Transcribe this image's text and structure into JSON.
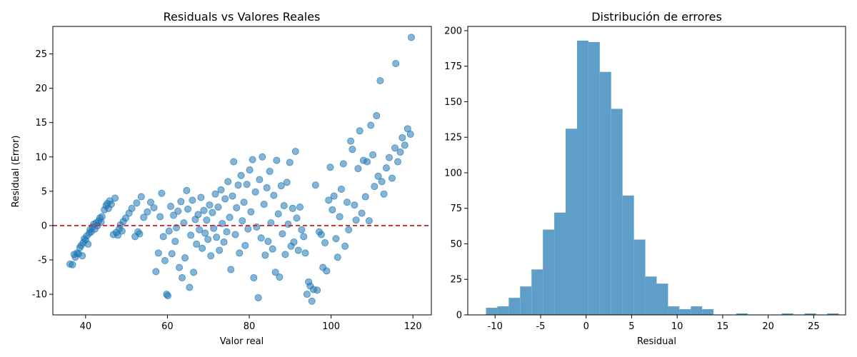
{
  "chart_data": [
    {
      "type": "scatter",
      "title": "Residuals vs Valores Reales",
      "xlabel": "Valor real",
      "ylabel": "Residual (Error)",
      "xlim": [
        32,
        124.5
      ],
      "ylim": [
        -13,
        29
      ],
      "xticks": [
        40,
        60,
        80,
        100,
        120
      ],
      "yticks": [
        -10,
        -5,
        0,
        5,
        10,
        15,
        20,
        25
      ],
      "reference_line": {
        "y": 0,
        "style": "dashed",
        "color": "#d62728"
      },
      "point_color": "#1f77b4",
      "points": [
        [
          36.2,
          -5.6
        ],
        [
          36.8,
          -5.7
        ],
        [
          37.2,
          -4.2
        ],
        [
          37.5,
          -4.6
        ],
        [
          37.9,
          -4.0
        ],
        [
          38.3,
          -4.1
        ],
        [
          38.6,
          -3.2
        ],
        [
          38.9,
          -2.9
        ],
        [
          39.2,
          -4.4
        ],
        [
          39.4,
          -2.5
        ],
        [
          39.7,
          -1.9
        ],
        [
          40.0,
          -2.1
        ],
        [
          40.3,
          -1.5
        ],
        [
          40.6,
          -2.7
        ],
        [
          40.9,
          -1.1
        ],
        [
          41.1,
          -0.6
        ],
        [
          41.4,
          -0.9
        ],
        [
          41.7,
          -0.2
        ],
        [
          42.0,
          0.2
        ],
        [
          42.3,
          -0.5
        ],
        [
          42.6,
          0.4
        ],
        [
          42.9,
          0.0
        ],
        [
          43.2,
          0.7
        ],
        [
          43.5,
          1.1
        ],
        [
          43.8,
          0.5
        ],
        [
          44.0,
          1.3
        ],
        [
          44.6,
          2.3
        ],
        [
          45.0,
          2.9
        ],
        [
          45.3,
          3.2
        ],
        [
          45.6,
          2.5
        ],
        [
          45.9,
          3.6
        ],
        [
          46.3,
          3.1
        ],
        [
          46.8,
          -1.3
        ],
        [
          47.2,
          4.0
        ],
        [
          47.5,
          -1.0
        ],
        [
          47.9,
          -1.4
        ],
        [
          48.2,
          -0.5
        ],
        [
          48.5,
          0.1
        ],
        [
          48.9,
          -0.8
        ],
        [
          49.2,
          0.6
        ],
        [
          49.8,
          1.1
        ],
        [
          50.6,
          1.8
        ],
        [
          51.3,
          2.5
        ],
        [
          52.1,
          -1.6
        ],
        [
          52.5,
          3.3
        ],
        [
          52.8,
          -0.9
        ],
        [
          53.2,
          -1.2
        ],
        [
          53.6,
          4.2
        ],
        [
          54.2,
          1.2
        ],
        [
          55.1,
          2.0
        ],
        [
          55.9,
          3.4
        ],
        [
          56.7,
          2.6
        ],
        [
          57.2,
          -6.7
        ],
        [
          57.8,
          -4.0
        ],
        [
          58.2,
          1.3
        ],
        [
          58.6,
          4.7
        ],
        [
          59.0,
          -1.6
        ],
        [
          59.4,
          -5.1
        ],
        [
          59.8,
          -10.0
        ],
        [
          60.1,
          -10.2
        ],
        [
          60.4,
          -0.8
        ],
        [
          60.8,
          2.8
        ],
        [
          61.1,
          -4.1
        ],
        [
          61.5,
          1.5
        ],
        [
          61.9,
          -2.3
        ],
        [
          62.2,
          -0.3
        ],
        [
          62.6,
          2.1
        ],
        [
          62.9,
          -6.1
        ],
        [
          63.3,
          3.5
        ],
        [
          63.6,
          -7.6
        ],
        [
          64.0,
          0.4
        ],
        [
          64.3,
          -4.7
        ],
        [
          64.7,
          5.1
        ],
        [
          65.0,
          2.4
        ],
        [
          65.4,
          -9.0
        ],
        [
          65.7,
          -1.4
        ],
        [
          66.1,
          3.7
        ],
        [
          66.4,
          -6.8
        ],
        [
          66.8,
          0.9
        ],
        [
          67.1,
          -2.7
        ],
        [
          67.5,
          1.6
        ],
        [
          67.8,
          -0.6
        ],
        [
          68.2,
          4.1
        ],
        [
          68.5,
          -3.3
        ],
        [
          68.9,
          2.2
        ],
        [
          69.2,
          -1.1
        ],
        [
          69.6,
          0.8
        ],
        [
          69.9,
          -2.0
        ],
        [
          70.3,
          3.0
        ],
        [
          70.6,
          -4.4
        ],
        [
          71.0,
          1.9
        ],
        [
          71.3,
          -0.4
        ],
        [
          71.7,
          4.6
        ],
        [
          72.0,
          -1.7
        ],
        [
          72.4,
          2.7
        ],
        [
          72.7,
          -3.6
        ],
        [
          73.1,
          5.2
        ],
        [
          73.4,
          0.3
        ],
        [
          73.8,
          -2.4
        ],
        [
          74.1,
          3.9
        ],
        [
          74.5,
          -0.9
        ],
        [
          74.8,
          6.4
        ],
        [
          75.2,
          1.2
        ],
        [
          75.5,
          -6.4
        ],
        [
          75.9,
          4.3
        ],
        [
          76.2,
          9.3
        ],
        [
          76.6,
          -1.3
        ],
        [
          76.9,
          2.6
        ],
        [
          77.3,
          5.9
        ],
        [
          77.6,
          -4.0
        ],
        [
          78.0,
          7.3
        ],
        [
          78.3,
          0.7
        ],
        [
          78.7,
          3.4
        ],
        [
          79.0,
          -2.9
        ],
        [
          79.4,
          6.0
        ],
        [
          79.7,
          -0.5
        ],
        [
          80.1,
          8.1
        ],
        [
          80.4,
          2.0
        ],
        [
          80.8,
          9.6
        ],
        [
          81.1,
          -7.6
        ],
        [
          81.5,
          4.9
        ],
        [
          81.8,
          -0.2
        ],
        [
          82.2,
          -10.5
        ],
        [
          82.5,
          6.7
        ],
        [
          82.9,
          -1.8
        ],
        [
          83.2,
          10.0
        ],
        [
          83.6,
          3.1
        ],
        [
          83.9,
          -4.3
        ],
        [
          84.3,
          5.5
        ],
        [
          84.6,
          -2.3
        ],
        [
          85.0,
          7.9
        ],
        [
          85.3,
          0.4
        ],
        [
          85.7,
          -3.4
        ],
        [
          86.0,
          4.4
        ],
        [
          86.4,
          -6.8
        ],
        [
          86.7,
          9.5
        ],
        [
          87.1,
          1.7
        ],
        [
          87.4,
          -7.5
        ],
        [
          87.8,
          5.8
        ],
        [
          88.1,
          -1.2
        ],
        [
          88.5,
          2.9
        ],
        [
          88.8,
          -4.2
        ],
        [
          89.2,
          6.3
        ],
        [
          89.5,
          0.2
        ],
        [
          89.9,
          9.2
        ],
        [
          90.2,
          -3.0
        ],
        [
          90.6,
          2.5
        ],
        [
          90.9,
          -2.4
        ],
        [
          91.3,
          10.8
        ],
        [
          91.6,
          1.1
        ],
        [
          92.0,
          -3.6
        ],
        [
          92.4,
          2.7
        ],
        [
          92.8,
          -0.6
        ],
        [
          93.3,
          -1.6
        ],
        [
          93.7,
          -4.0
        ],
        [
          94.1,
          -10.0
        ],
        [
          94.5,
          -8.2
        ],
        [
          94.9,
          -8.8
        ],
        [
          95.3,
          -11.0
        ],
        [
          95.7,
          -9.3
        ],
        [
          96.2,
          5.9
        ],
        [
          96.6,
          -9.4
        ],
        [
          97.1,
          -0.9
        ],
        [
          97.6,
          -1.3
        ],
        [
          98.0,
          -6.1
        ],
        [
          98.5,
          -2.5
        ],
        [
          98.9,
          -6.6
        ],
        [
          99.4,
          3.7
        ],
        [
          99.8,
          8.5
        ],
        [
          100.3,
          2.3
        ],
        [
          100.7,
          4.3
        ],
        [
          101.2,
          -1.9
        ],
        [
          101.6,
          -4.6
        ],
        [
          102.1,
          1.3
        ],
        [
          102.5,
          5.3
        ],
        [
          103.0,
          9.0
        ],
        [
          103.4,
          -3.0
        ],
        [
          103.9,
          3.4
        ],
        [
          104.3,
          -0.6
        ],
        [
          104.8,
          12.3
        ],
        [
          105.2,
          11.1
        ],
        [
          105.7,
          3.0
        ],
        [
          106.1,
          0.8
        ],
        [
          106.6,
          8.3
        ],
        [
          107.0,
          13.8
        ],
        [
          107.5,
          1.8
        ],
        [
          107.9,
          9.5
        ],
        [
          108.4,
          4.2
        ],
        [
          108.8,
          9.3
        ],
        [
          109.3,
          0.7
        ],
        [
          109.7,
          14.6
        ],
        [
          110.2,
          10.3
        ],
        [
          110.6,
          5.7
        ],
        [
          111.1,
          16.0
        ],
        [
          111.5,
          7.2
        ],
        [
          112.0,
          21.1
        ],
        [
          112.4,
          6.4
        ],
        [
          112.9,
          4.6
        ],
        [
          113.5,
          8.4
        ],
        [
          114.2,
          9.9
        ],
        [
          114.9,
          6.9
        ],
        [
          115.6,
          11.3
        ],
        [
          115.8,
          23.6
        ],
        [
          116.3,
          9.3
        ],
        [
          116.9,
          10.7
        ],
        [
          117.4,
          12.8
        ],
        [
          118.0,
          11.7
        ],
        [
          118.7,
          14.1
        ],
        [
          119.4,
          13.3
        ],
        [
          119.6,
          27.4
        ]
      ]
    },
    {
      "type": "bar",
      "title": "Distribución de errores",
      "xlabel": "Residual",
      "ylabel": "",
      "xlim": [
        -13,
        28.5
      ],
      "ylim": [
        0,
        203
      ],
      "xticks": [
        -10,
        -5,
        0,
        5,
        10,
        15,
        20,
        25
      ],
      "yticks": [
        0,
        25,
        50,
        75,
        100,
        125,
        150,
        175,
        200
      ],
      "bar_color": "#5f9ec9",
      "bins": [
        {
          "x0": -11.0,
          "x1": -9.75,
          "count": 5
        },
        {
          "x0": -9.75,
          "x1": -8.5,
          "count": 6
        },
        {
          "x0": -8.5,
          "x1": -7.25,
          "count": 12
        },
        {
          "x0": -7.25,
          "x1": -6.0,
          "count": 20
        },
        {
          "x0": -6.0,
          "x1": -4.75,
          "count": 32
        },
        {
          "x0": -4.75,
          "x1": -3.5,
          "count": 60
        },
        {
          "x0": -3.5,
          "x1": -2.25,
          "count": 72
        },
        {
          "x0": -2.25,
          "x1": -1.0,
          "count": 131
        },
        {
          "x0": -1.0,
          "x1": 0.25,
          "count": 193
        },
        {
          "x0": 0.25,
          "x1": 1.5,
          "count": 192
        },
        {
          "x0": 1.5,
          "x1": 2.75,
          "count": 171
        },
        {
          "x0": 2.75,
          "x1": 4.0,
          "count": 145
        },
        {
          "x0": 4.0,
          "x1": 5.25,
          "count": 84
        },
        {
          "x0": 5.25,
          "x1": 6.5,
          "count": 53
        },
        {
          "x0": 6.5,
          "x1": 7.75,
          "count": 27
        },
        {
          "x0": 7.75,
          "x1": 9.0,
          "count": 22
        },
        {
          "x0": 9.0,
          "x1": 10.25,
          "count": 6
        },
        {
          "x0": 10.25,
          "x1": 11.5,
          "count": 4
        },
        {
          "x0": 11.5,
          "x1": 12.75,
          "count": 6
        },
        {
          "x0": 12.75,
          "x1": 14.0,
          "count": 4
        },
        {
          "x0": 14.0,
          "x1": 15.25,
          "count": 0
        },
        {
          "x0": 15.25,
          "x1": 16.5,
          "count": 0
        },
        {
          "x0": 16.5,
          "x1": 17.75,
          "count": 1
        },
        {
          "x0": 17.75,
          "x1": 19.0,
          "count": 0
        },
        {
          "x0": 19.0,
          "x1": 20.25,
          "count": 0
        },
        {
          "x0": 20.25,
          "x1": 21.5,
          "count": 0
        },
        {
          "x0": 21.5,
          "x1": 22.75,
          "count": 1
        },
        {
          "x0": 22.75,
          "x1": 24.0,
          "count": 0
        },
        {
          "x0": 24.0,
          "x1": 25.25,
          "count": 1
        },
        {
          "x0": 25.25,
          "x1": 26.5,
          "count": 0
        },
        {
          "x0": 26.5,
          "x1": 27.75,
          "count": 1
        }
      ]
    }
  ]
}
